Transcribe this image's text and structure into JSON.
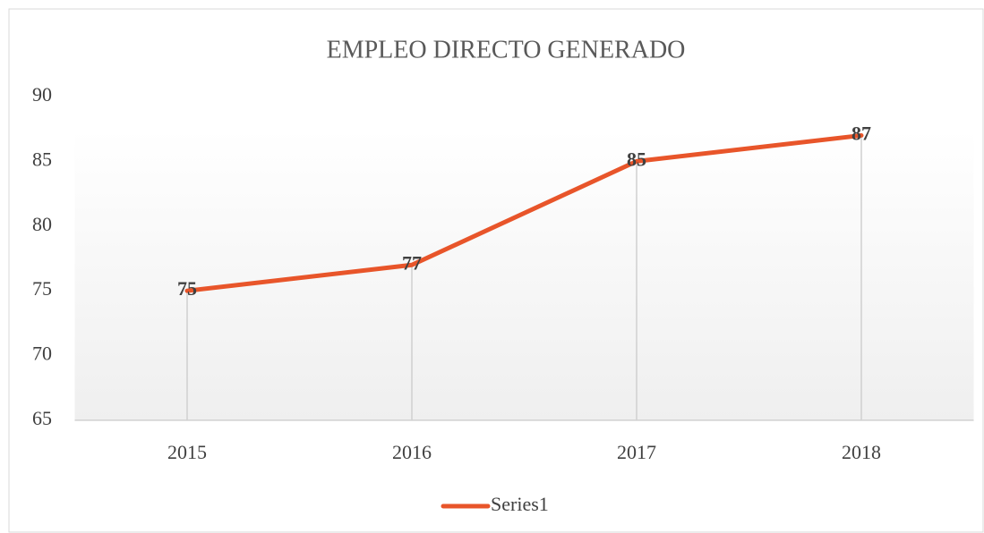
{
  "chart_data": {
    "type": "line",
    "title": "EMPLEO DIRECTO GENERADO",
    "categories": [
      "2015",
      "2016",
      "2017",
      "2018"
    ],
    "series": [
      {
        "name": "Series1",
        "color": "#e8552a",
        "values": [
          75,
          77,
          85,
          87
        ]
      }
    ],
    "ylim": [
      65,
      90
    ],
    "yticks": [
      65,
      70,
      75,
      80,
      85,
      90
    ],
    "drop_lines": true,
    "data_labels": true,
    "legend": "bottom"
  }
}
